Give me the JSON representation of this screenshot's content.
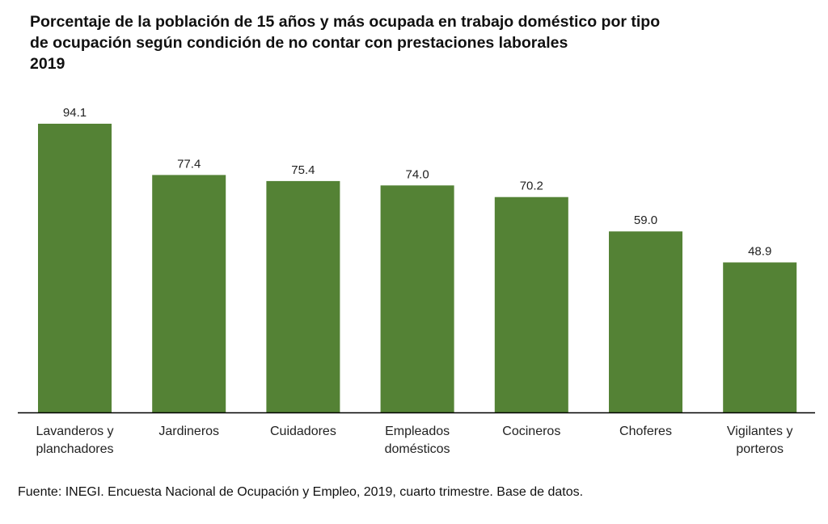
{
  "chart_data": {
    "type": "bar",
    "title": "Porcentaje de la población de 15 años y más ocupada en trabajo doméstico por tipo de ocupación según condición de no contar con prestaciones laborales 2019",
    "title_lines": [
      "Porcentaje de la población de 15 años y más ocupada en trabajo doméstico por tipo",
      "de ocupación según condición de no contar con prestaciones laborales",
      "2019"
    ],
    "categories": [
      [
        "Lavanderos y",
        "planchadores"
      ],
      [
        "Jardineros"
      ],
      [
        "Cuidadores"
      ],
      [
        "Empleados",
        "domésticos"
      ],
      [
        "Cocineros"
      ],
      [
        "Choferes"
      ],
      [
        "Vigilantes y",
        "porteros"
      ]
    ],
    "values": [
      94.1,
      77.4,
      75.4,
      74.0,
      70.2,
      59.0,
      48.9
    ],
    "value_labels": [
      "94.1",
      "77.4",
      "75.4",
      "74.0",
      "70.2",
      "59.0",
      "48.9"
    ],
    "xlabel": "",
    "ylabel": "",
    "ylim": [
      0,
      100
    ],
    "grid": false,
    "legend": "none",
    "bar_color": "#548235",
    "source": "Fuente: INEGI. Encuesta Nacional de Ocupación y Empleo, 2019, cuarto trimestre. Base de datos."
  }
}
